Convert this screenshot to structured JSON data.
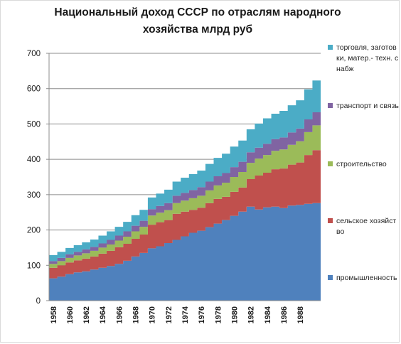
{
  "chart_data": {
    "type": "area",
    "title_lines": [
      "Национальный доход  СССР по отраслям народного",
      "хозяйства млрд руб"
    ],
    "xlabel": "",
    "ylabel": "",
    "ylim": [
      0,
      700
    ],
    "yticks": [
      0,
      100,
      200,
      300,
      400,
      500,
      600,
      700
    ],
    "grid": true,
    "stacked": true,
    "legend_position": "right",
    "x": [
      1958,
      1959,
      1960,
      1961,
      1962,
      1963,
      1964,
      1965,
      1966,
      1967,
      1968,
      1969,
      1970,
      1971,
      1972,
      1973,
      1974,
      1975,
      1976,
      1977,
      1978,
      1979,
      1980,
      1981,
      1982,
      1983,
      1984,
      1985,
      1986,
      1987,
      1988,
      1989,
      1990
    ],
    "xtick_labels": [
      "1958",
      "1960",
      "1962",
      "1964",
      "1966",
      "1968",
      "1970",
      "1972",
      "1974",
      "1976",
      "1978",
      "1980",
      "1982",
      "1984",
      "1986",
      "1988"
    ],
    "series": [
      {
        "name": "промышленность",
        "color": "#4f81bd",
        "values": [
          63,
          68,
          75,
          80,
          83,
          88,
          93,
          98,
          104,
          113,
          125,
          135,
          148,
          154,
          163,
          172,
          182,
          192,
          198,
          208,
          218,
          228,
          240,
          252,
          266,
          258,
          264,
          266,
          262,
          269,
          271,
          274,
          276
        ]
      },
      {
        "name": "сельское хозяйство",
        "color": "#c0504d",
        "values": [
          30,
          32,
          33,
          34,
          36,
          37,
          40,
          43,
          47,
          48,
          50,
          52,
          67,
          68,
          65,
          74,
          70,
          65,
          65,
          68,
          70,
          66,
          68,
          68,
          78,
          96,
          98,
          106,
          112,
          116,
          120,
          138,
          150
        ]
      },
      {
        "name": "строительство",
        "color": "#9bbb59",
        "values": [
          11,
          12,
          13,
          14,
          15,
          16,
          17,
          18,
          19,
          20,
          21,
          22,
          26,
          27,
          28,
          30,
          31,
          33,
          34,
          36,
          38,
          40,
          42,
          44,
          46,
          48,
          50,
          52,
          54,
          56,
          60,
          65,
          70
        ]
      },
      {
        "name": "транспорт и связь",
        "color": "#8064a2",
        "values": [
          8,
          9,
          10,
          10,
          11,
          11,
          12,
          13,
          14,
          15,
          16,
          17,
          18,
          19,
          20,
          21,
          22,
          23,
          24,
          25,
          26,
          27,
          28,
          29,
          30,
          31,
          32,
          33,
          34,
          35,
          36,
          36,
          37
        ]
      },
      {
        "name": "торговля, заготовки, матер.- техн. снабж",
        "color": "#4bacc6",
        "values": [
          17,
          17,
          18,
          19,
          20,
          21,
          22,
          24,
          25,
          27,
          30,
          31,
          33,
          35,
          38,
          40,
          43,
          45,
          47,
          50,
          52,
          55,
          58,
          60,
          65,
          68,
          72,
          72,
          75,
          77,
          80,
          85,
          90
        ]
      }
    ]
  },
  "legend": [
    {
      "label": "торговля, заготовки, матер.- техн. снабж",
      "color": "#4bacc6"
    },
    {
      "label": "транспорт и связь",
      "color": "#8064a2"
    },
    {
      "label": "строительство",
      "color": "#9bbb59"
    },
    {
      "label": "сельское хозяйство",
      "color": "#c0504d"
    },
    {
      "label": "промышленность",
      "color": "#4f81bd"
    }
  ]
}
